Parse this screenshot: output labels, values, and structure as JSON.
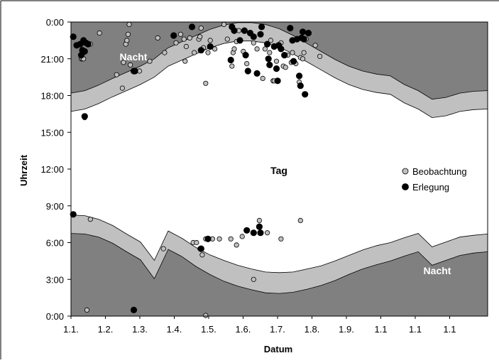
{
  "chart_data": {
    "type": "scatter",
    "xlabel": "Datum",
    "ylabel": "Uhrzeit",
    "x_tick_labels": [
      "1.1.",
      "1.2.",
      "1.3.",
      "1.4.",
      "1.5.",
      "1.6.",
      "1.7.",
      "1.8.",
      "1.9.",
      "1.1",
      "1.1",
      "1.1"
    ],
    "y_tick_labels": [
      "0:00",
      "3:00",
      "6:00",
      "9:00",
      "12:00",
      "15:00",
      "18:00",
      "21:00",
      "0:00"
    ],
    "x_range_days": [
      0,
      365
    ],
    "ylim_hours": [
      0,
      24
    ],
    "grid": false,
    "legend_position": "center-right",
    "region_labels": {
      "night_top": "Nacht",
      "day": "Tag",
      "night_bottom": "Nacht"
    },
    "colors": {
      "night": "#808080",
      "twilight": "#c0c0c0",
      "day": "#ffffff",
      "beobachtung_fill": "#c0c0c0",
      "erlegung_fill": "#000000"
    },
    "bands": {
      "sunrise_hours": [
        8.25,
        8.2,
        7.9,
        7.4,
        6.7,
        6.05,
        4.55,
        6.95,
        6.35,
        5.6,
        5.0,
        4.55,
        4.15,
        3.85,
        3.6,
        3.55,
        3.6,
        3.85,
        4.1,
        4.5,
        4.95,
        5.4,
        5.75,
        6.0,
        6.4,
        6.75,
        5.65,
        6.05,
        6.45,
        6.6,
        6.7
      ],
      "civil_dawn_hours": [
        6.75,
        6.7,
        6.45,
        5.95,
        5.25,
        4.6,
        3.05,
        5.45,
        4.85,
        4.05,
        3.4,
        2.85,
        2.45,
        2.15,
        1.9,
        1.85,
        1.95,
        2.2,
        2.5,
        2.9,
        3.4,
        3.85,
        4.2,
        4.5,
        4.9,
        5.25,
        4.15,
        4.55,
        4.95,
        5.15,
        5.25
      ],
      "sunset_hours": [
        16.7,
        16.9,
        17.35,
        17.9,
        18.4,
        18.9,
        19.5,
        20.4,
        20.9,
        21.4,
        21.9,
        22.25,
        22.45,
        22.45,
        22.3,
        21.95,
        21.4,
        20.75,
        20.1,
        19.45,
        18.9,
        18.5,
        18.25,
        18.1,
        17.4,
        16.9,
        16.2,
        16.35,
        16.7,
        16.85,
        16.9
      ],
      "civil_dusk_hours": [
        18.2,
        18.4,
        18.85,
        19.4,
        19.9,
        20.4,
        21.0,
        21.9,
        22.4,
        22.9,
        23.4,
        23.75,
        23.95,
        23.95,
        23.8,
        23.45,
        22.9,
        22.25,
        21.6,
        20.95,
        20.4,
        20.0,
        19.75,
        19.6,
        18.9,
        18.4,
        17.7,
        17.85,
        18.2,
        18.35,
        18.4
      ]
    },
    "series": [
      {
        "name": "Beobachtung",
        "points": [
          [
            9,
            21.0
          ],
          [
            10,
            21.0
          ],
          [
            11,
            21.0
          ],
          [
            12,
            16.2
          ],
          [
            17,
            22.2
          ],
          [
            25,
            23.1
          ],
          [
            40,
            19.7
          ],
          [
            45,
            18.6
          ],
          [
            46,
            20.7
          ],
          [
            48,
            22.2
          ],
          [
            49,
            22.5
          ],
          [
            50,
            23.0
          ],
          [
            51,
            23.8
          ],
          [
            52,
            20.5
          ],
          [
            60,
            20.0
          ],
          [
            69,
            20.8
          ],
          [
            76,
            22.7
          ],
          [
            82,
            21.5
          ],
          [
            92,
            22.3
          ],
          [
            96,
            23.0
          ],
          [
            99,
            22.6
          ],
          [
            100,
            20.8
          ],
          [
            101,
            22.0
          ],
          [
            104,
            22.7
          ],
          [
            108,
            21.5
          ],
          [
            112,
            22.6
          ],
          [
            113,
            22.8
          ],
          [
            114,
            23.5
          ],
          [
            116,
            21.9
          ],
          [
            118,
            19.0
          ],
          [
            120,
            21.5
          ],
          [
            122,
            22.5
          ],
          [
            126,
            21.8
          ],
          [
            134,
            23.8
          ],
          [
            137,
            22.6
          ],
          [
            141,
            20.4
          ],
          [
            142,
            21.5
          ],
          [
            143,
            21.8
          ],
          [
            145,
            22.4
          ],
          [
            147,
            23.3
          ],
          [
            151,
            21.6
          ],
          [
            154,
            20.6
          ],
          [
            160,
            22.3
          ],
          [
            163,
            21.8
          ],
          [
            168,
            19.4
          ],
          [
            170,
            21.8
          ],
          [
            174,
            21.5
          ],
          [
            175,
            22.5
          ],
          [
            177,
            19.2
          ],
          [
            178,
            19.2
          ],
          [
            180,
            20.8
          ],
          [
            183,
            21.9
          ],
          [
            184,
            22.3
          ],
          [
            186,
            20.4
          ],
          [
            188,
            20.3
          ],
          [
            190,
            21.3
          ],
          [
            193,
            20.7
          ],
          [
            194,
            21.5
          ],
          [
            197,
            20.6
          ],
          [
            200,
            19.1
          ],
          [
            201,
            21.1
          ],
          [
            203,
            21.0
          ],
          [
            204,
            21.5
          ],
          [
            206,
            22.6
          ],
          [
            214,
            22.1
          ],
          [
            218,
            21.2
          ],
          [
            14,
            0.5
          ],
          [
            17,
            7.9
          ],
          [
            81,
            5.5
          ],
          [
            107,
            6.0
          ],
          [
            110,
            6.0
          ],
          [
            113,
            5.5
          ],
          [
            115,
            5.0
          ],
          [
            118,
            6.3
          ],
          [
            124,
            6.3
          ],
          [
            130,
            6.3
          ],
          [
            140,
            6.3
          ],
          [
            145,
            5.8
          ],
          [
            150,
            6.5
          ],
          [
            165,
            7.8
          ],
          [
            172,
            6.8
          ],
          [
            184,
            6.3
          ],
          [
            201,
            7.8
          ],
          [
            118,
            0.05
          ],
          [
            160,
            3.0
          ]
        ]
      },
      {
        "name": "Erlegung",
        "points": [
          [
            2,
            22.8
          ],
          [
            5,
            22.1
          ],
          [
            8,
            22.2
          ],
          [
            9,
            21.3
          ],
          [
            10,
            21.7
          ],
          [
            11,
            22.5
          ],
          [
            12,
            21.6
          ],
          [
            13,
            22.3
          ],
          [
            15,
            22.2
          ],
          [
            12,
            16.3
          ],
          [
            55,
            20.0
          ],
          [
            56,
            20.0
          ],
          [
            90,
            22.9
          ],
          [
            106,
            23.6
          ],
          [
            114,
            21.7
          ],
          [
            122,
            22.0
          ],
          [
            140,
            20.9
          ],
          [
            141,
            23.6
          ],
          [
            143,
            23.3
          ],
          [
            148,
            22.5
          ],
          [
            152,
            23.3
          ],
          [
            153,
            21.3
          ],
          [
            155,
            20.0
          ],
          [
            157,
            23.1
          ],
          [
            160,
            22.8
          ],
          [
            163,
            19.8
          ],
          [
            166,
            23.0
          ],
          [
            167,
            23.6
          ],
          [
            172,
            22.2
          ],
          [
            173,
            21.0
          ],
          [
            174,
            20.5
          ],
          [
            178,
            22.0
          ],
          [
            180,
            20.2
          ],
          [
            181,
            19.2
          ],
          [
            182,
            22.1
          ],
          [
            184,
            21.8
          ],
          [
            187,
            21.3
          ],
          [
            192,
            23.5
          ],
          [
            194,
            22.5
          ],
          [
            195,
            20.8
          ],
          [
            198,
            22.6
          ],
          [
            200,
            19.6
          ],
          [
            201,
            18.8
          ],
          [
            202,
            22.7
          ],
          [
            203,
            23.2
          ],
          [
            204,
            22.6
          ],
          [
            205,
            18.1
          ],
          [
            208,
            23.1
          ],
          [
            2,
            8.3
          ],
          [
            55,
            0.5
          ],
          [
            114,
            5.5
          ],
          [
            120,
            6.3
          ],
          [
            154,
            7.0
          ],
          [
            160,
            6.8
          ],
          [
            165,
            7.3
          ],
          [
            166,
            6.8
          ]
        ]
      }
    ]
  }
}
